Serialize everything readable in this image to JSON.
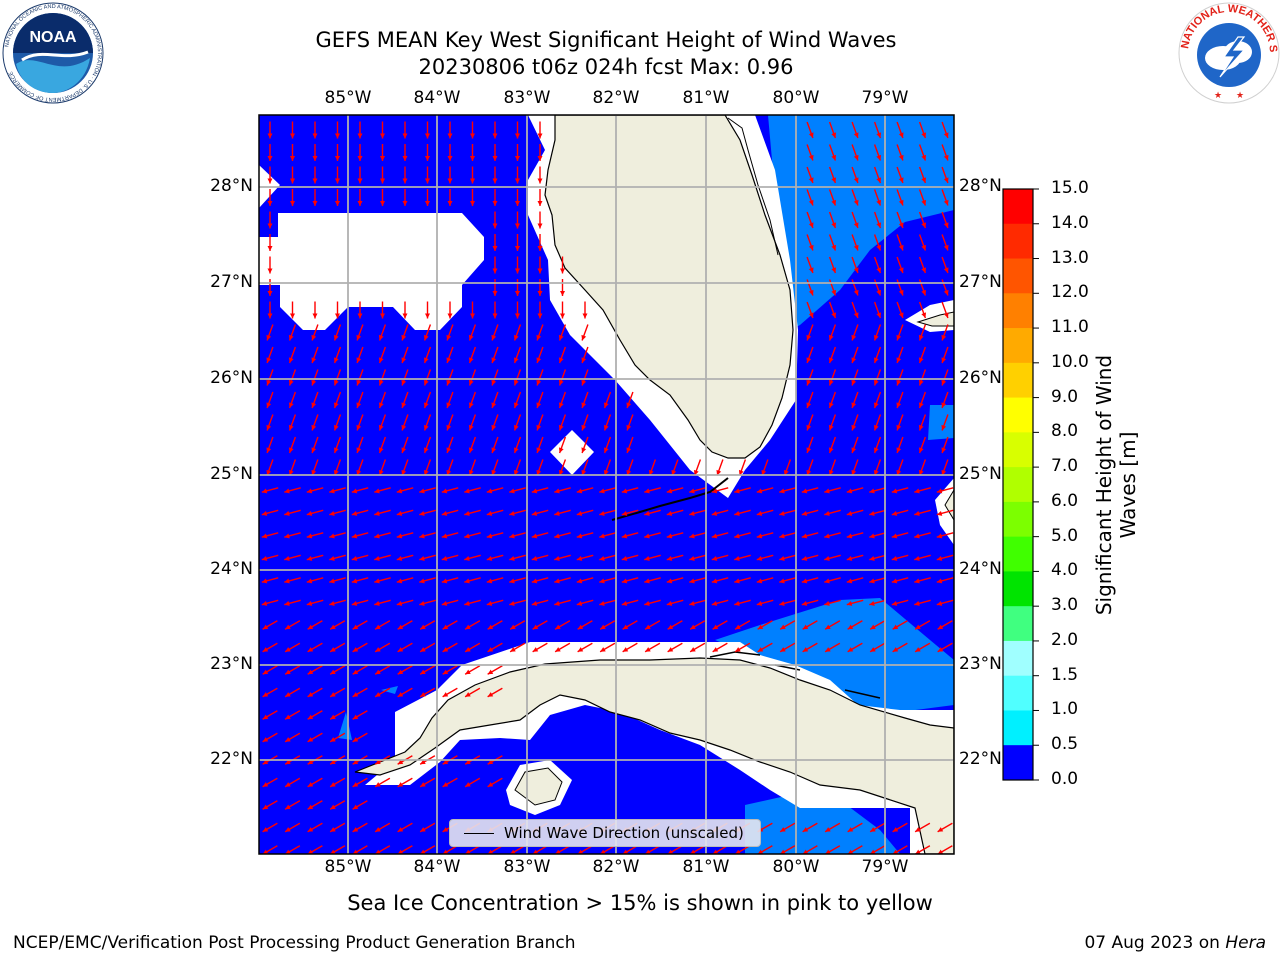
{
  "title": {
    "line1": "GEFS MEAN Key West Significant Height of Wind Waves",
    "line2": "20230806 t06z 024h fcst   Max: 0.96"
  },
  "axes": {
    "lon_labels": [
      "85°W",
      "84°W",
      "83°W",
      "82°W",
      "81°W",
      "80°W",
      "79°W"
    ],
    "lat_labels": [
      "28°N",
      "27°N",
      "26°N",
      "25°N",
      "24°N",
      "23°N",
      "22°N"
    ]
  },
  "colorbar": {
    "title": "Significant Height of Wind Waves [m]",
    "ticks": [
      "15.0",
      "14.0",
      "13.0",
      "12.0",
      "11.0",
      "10.0",
      "9.0",
      "8.0",
      "7.0",
      "6.0",
      "5.0",
      "4.0",
      "3.0",
      "2.0",
      "1.5",
      "1.0",
      "0.5",
      "0.0"
    ],
    "colors": [
      "#ff0000",
      "#ff2a00",
      "#ff5500",
      "#ff8000",
      "#ffaa00",
      "#ffd000",
      "#ffff00",
      "#d8ff00",
      "#b0ff00",
      "#7cff00",
      "#40ff00",
      "#00e400",
      "#40ff80",
      "#a0ffff",
      "#50ffff",
      "#00f0ff",
      "#0080ff",
      "#0000ff"
    ]
  },
  "legend": {
    "label": "Wind Wave Direction (unscaled)"
  },
  "note": "Sea Ice Concentration > 15% is shown in pink to yellow",
  "footer": {
    "credit": "NCEP/EMC/Verification Post Processing Product Generation Branch",
    "date": "07 Aug 2023 on",
    "machine": "Hera"
  },
  "logos": {
    "left": "NOAA",
    "left_ring": "NATIONAL OCEANIC AND ATMOSPHERIC ADMINISTRATION · U.S. DEPARTMENT OF COMMERCE",
    "right_ring": "NATIONAL WEATHER SERVICE"
  },
  "colors": {
    "sea_low": "#0000ff",
    "sea_mid": "#0080ff",
    "land": "#efeedd",
    "missing": "#ffffff",
    "arrow": "#ff0000",
    "grid": "#b0b0b0"
  }
}
